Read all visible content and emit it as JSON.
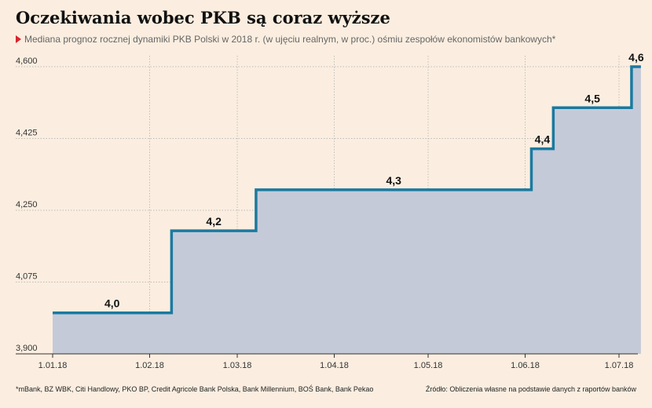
{
  "header": {
    "title": "Oczekiwania wobec PKB są coraz wyższe",
    "subtitle": "Mediana prognoz rocznej dynamiki PKB Polski w 2018 r. (w ujęciu realnym, w proc.) ośmiu zespołów ekonomistów bankowych*"
  },
  "footer": {
    "footnote": "*mBank, BZ WBK, Citi Handlowy, PKO BP, Credit Agricole Bank Polska, Bank Millennium, BOŚ Bank, Bank Pekao",
    "source": "Źródło: Obliczenia własne na podstawie danych z raportów banków"
  },
  "colors": {
    "line": "#1a7aa0",
    "fill": "#c5cad8",
    "background": "#fbeee0",
    "grid": "#aaaaaa",
    "accent": "#d9232e"
  },
  "chart_data": {
    "type": "area",
    "step": true,
    "title": "Oczekiwania wobec PKB są coraz wyższe",
    "xlabel": "",
    "ylabel": "",
    "ylim": [
      3.9,
      4.6
    ],
    "yticks": [
      3.9,
      4.075,
      4.25,
      4.425,
      4.6
    ],
    "ytick_labels": [
      "3,900",
      "4,075",
      "4,250",
      "4,425",
      "4,600"
    ],
    "xlim": [
      "2018-01-01",
      "2018-07-08"
    ],
    "xticks": [
      "2018-01-01",
      "2018-02-01",
      "2018-03-01",
      "2018-04-01",
      "2018-05-01",
      "2018-06-01",
      "2018-07-01"
    ],
    "xtick_labels": [
      "1.01.18",
      "1.02.18",
      "1.03.18",
      "1.04.18",
      "1.05.18",
      "1.06.18",
      "1.07.18"
    ],
    "grid": true,
    "series": [
      {
        "steps": [
          {
            "start": "2018-01-01",
            "value": 4.0,
            "label": "4,0"
          },
          {
            "start": "2018-02-08",
            "value": 4.2,
            "label": "4,2"
          },
          {
            "start": "2018-03-07",
            "value": 4.3,
            "label": "4,3"
          },
          {
            "start": "2018-06-03",
            "value": 4.4,
            "label": "4,4"
          },
          {
            "start": "2018-06-10",
            "value": 4.5,
            "label": "4,5"
          },
          {
            "start": "2018-07-05",
            "value": 4.6,
            "label": "4,6"
          }
        ],
        "end": "2018-07-08"
      }
    ]
  }
}
